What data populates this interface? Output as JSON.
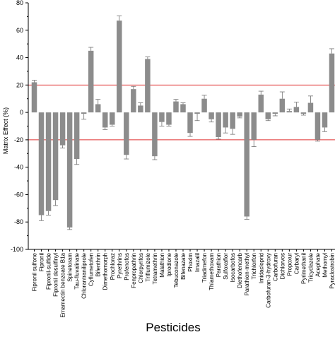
{
  "chart_data": {
    "type": "bar",
    "xlabel": "Pesticides",
    "ylabel": "Matrix Effect (%)",
    "ylim": [
      -100,
      80
    ],
    "yticks": [
      -100,
      -80,
      -60,
      -40,
      -20,
      0,
      20,
      40,
      60,
      80
    ],
    "reference_lines": [
      20,
      -20
    ],
    "colors": {
      "bar": "#8c8c8c",
      "error_bar": "#707070",
      "reference_line": "#e03030",
      "axis": "#000000"
    },
    "categories": [
      "Fipronil sulfone",
      "Fipronil",
      "Fipronil-sulfide",
      "Fipronil desulfinyl",
      "Emamectin benzoate B1a",
      "Spinetoram",
      "Tau-fluvalinate",
      "Chlorantraniliprole",
      "Cyflumetofen",
      "Bifenthrin",
      "Dimethomorph",
      "Prochloraz",
      "Pyrethrins",
      "Profenofos",
      "Fenpropathrin",
      "Chlorpyrifos",
      "Triflumizole",
      "Tetramethrin",
      "Malathion",
      "Iprodione",
      "Tebuconazole",
      "Bifenazate",
      "Phoxim",
      "Imazalil",
      "Triadimefon",
      "Thiamethoxam",
      "Parathion",
      "Sulfoxaflor",
      "Isocarbofos",
      "Diethofencarb",
      "Parathion-methyl",
      "Trichlorfon",
      "Imidacloprid",
      "Carbofuran-3-hydroxy",
      "Carbofuran",
      "Dichlorvos",
      "Propoxur",
      "Carbaryl",
      "Pyrimethanil",
      "Tricyclazole",
      "Acephate",
      "Methomyl",
      "Pyraclostrobin"
    ],
    "values": [
      22,
      -75,
      -72,
      -64,
      -24,
      -84,
      -34,
      -1,
      45,
      6,
      -11,
      -9,
      67,
      -31,
      17,
      5,
      39,
      -32,
      -7,
      -9,
      8,
      6,
      -15,
      -1,
      10,
      -5,
      -18,
      -11,
      -12,
      -3,
      -76,
      -20,
      13,
      -5,
      -1,
      10,
      1,
      4,
      -1,
      7,
      -20,
      -11,
      43
    ],
    "errors": [
      1.5,
      4,
      3,
      4,
      2,
      1.5,
      4,
      4,
      2.5,
      3.5,
      1.5,
      1,
      3.5,
      3,
      2,
      2,
      1.5,
      2.5,
      3,
      1,
      1.5,
      1,
      2.5,
      5,
      2.5,
      2,
      1.5,
      4,
      4,
      1,
      2,
      5,
      2.5,
      1,
      1.5,
      5,
      1.5,
      3.5,
      1,
      5,
      1,
      3,
      3.5
    ]
  }
}
